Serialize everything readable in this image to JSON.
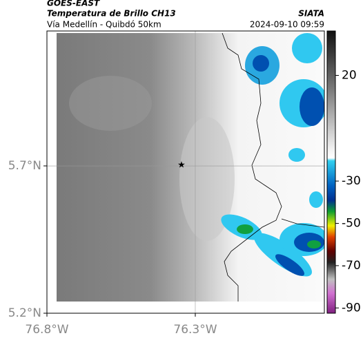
{
  "header": {
    "agency": "GOES-EAST",
    "product": "Temperatura de Brillo CH13",
    "source": "SIATA",
    "location": "Vía Medellín - Quibdó 50km",
    "timestamp": "2024-09-10 09:59"
  },
  "map": {
    "xlim": [
      -76.8,
      -75.865
    ],
    "ylim": [
      5.2,
      6.158
    ],
    "xticks": [
      {
        "value": -76.8,
        "label": "76.8°W"
      },
      {
        "value": -76.3,
        "label": "76.3°W"
      }
    ],
    "yticks": [
      {
        "value": 5.7,
        "label": "5.7°N"
      },
      {
        "value": 5.2,
        "label": "5.2°N"
      }
    ]
  },
  "colorbar": {
    "lim": [
      -92.5,
      41
    ],
    "ticks": [
      20,
      -30,
      -50,
      -70,
      -90
    ]
  }
}
